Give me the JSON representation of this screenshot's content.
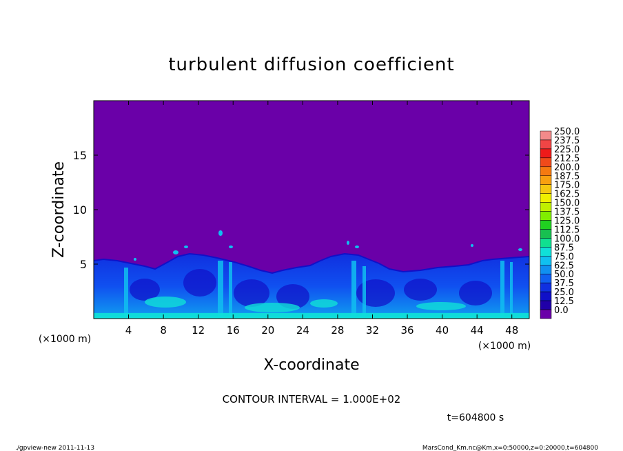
{
  "chart_data": {
    "type": "heatmap",
    "title": "turbulent diffusion coefficient",
    "xlabel": "X-coordinate",
    "ylabel": "Z-coordinate",
    "x_unit": "(×1000 m)",
    "y_unit": "(×1000 m)",
    "xlim": [
      0,
      50
    ],
    "ylim": [
      0,
      20
    ],
    "x_ticks": [
      4,
      8,
      12,
      16,
      20,
      24,
      28,
      32,
      36,
      40,
      44,
      48
    ],
    "y_ticks": [
      5,
      10,
      15
    ],
    "contour_interval_label": "CONTOUR INTERVAL = 1.000E+02",
    "time_label": "t=604800 s",
    "colorbar": {
      "levels": [
        "250.0",
        "237.5",
        "225.0",
        "212.5",
        "200.0",
        "187.5",
        "175.0",
        "162.5",
        "150.0",
        "137.5",
        "125.0",
        "112.5",
        "100.0",
        "87.5",
        "75.0",
        "62.5",
        "50.0",
        "37.5",
        "25.0",
        "12.5",
        "0.0"
      ],
      "colors": [
        "#f28a8a",
        "#f04545",
        "#ee1a1a",
        "#f04a1a",
        "#f57a10",
        "#f8a010",
        "#f5c810",
        "#f0f000",
        "#c0f000",
        "#80ee00",
        "#20d020",
        "#18c050",
        "#10e090",
        "#10e0d8",
        "#10c0f0",
        "#1090f0",
        "#1060f0",
        "#1030e0",
        "#1010c8",
        "#2000a8",
        "#6a00a8"
      ]
    },
    "field_description_values": {
      "background_value": 0.0,
      "boundary_layer_top_km": [
        5.0,
        5.5,
        6.0,
        5.5,
        4.2,
        5.2,
        6.0,
        5.0,
        4.5,
        5.2,
        5.8
      ]
    }
  },
  "footer": {
    "left": "./gpview-new 2011-11-13",
    "right": "MarsCond_Km.nc@Km,x=0:50000,z=0:20000,t=604800"
  },
  "colors": {
    "background": "#ffffff",
    "field_base": "#6a00a8"
  }
}
